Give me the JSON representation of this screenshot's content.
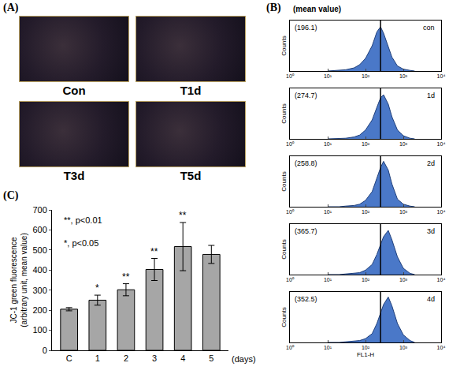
{
  "panels": {
    "A": {
      "label": "(A)",
      "images": [
        {
          "label": "Con"
        },
        {
          "label": "T1d"
        },
        {
          "label": "T3d"
        },
        {
          "label": "T5d"
        }
      ]
    },
    "B": {
      "label": "(B)",
      "header": "(mean value)"
    },
    "C": {
      "label": "(C)"
    }
  },
  "chart_data": [
    {
      "type": "area",
      "title": "con",
      "mean_label": "(196.1)",
      "x": [
        10,
        20,
        30,
        50,
        70,
        100,
        150,
        200,
        250,
        300,
        400,
        500,
        700,
        1000,
        1500,
        2000
      ],
      "values": [
        0,
        1,
        2,
        5,
        10,
        20,
        40,
        62,
        70,
        60,
        38,
        22,
        8,
        3,
        1,
        0
      ],
      "xlim": [
        1,
        10000
      ],
      "xticks": [
        {
          "value": 1,
          "label": "10⁰"
        },
        {
          "value": 10,
          "label": "10¹"
        },
        {
          "value": 100,
          "label": "10²"
        },
        {
          "value": 1000,
          "label": "10³"
        },
        {
          "value": 10000,
          "label": "10⁴"
        }
      ],
      "ylim": [
        0,
        80
      ],
      "log": "x",
      "tick_labels": "x",
      "y_label": "Counts",
      "reference_line": 250,
      "color": "#4a78c8"
    },
    {
      "type": "area",
      "title": "1d",
      "mean_label": "(274.7)",
      "x": [
        10,
        20,
        30,
        50,
        70,
        100,
        150,
        200,
        250,
        300,
        400,
        500,
        700,
        1000,
        1500,
        2000
      ],
      "values": [
        0,
        1,
        1,
        3,
        6,
        14,
        30,
        50,
        65,
        70,
        55,
        35,
        14,
        5,
        1,
        0
      ],
      "xlim": [
        1,
        10000
      ],
      "xticks": [
        {
          "value": 1,
          "label": "10⁰"
        },
        {
          "value": 10,
          "label": "10¹"
        },
        {
          "value": 100,
          "label": "10²"
        },
        {
          "value": 1000,
          "label": "10³"
        },
        {
          "value": 10000,
          "label": "10⁴"
        }
      ],
      "ylim": [
        0,
        80
      ],
      "log": "x",
      "tick_labels": "x",
      "y_label": "Counts",
      "reference_line": 250,
      "color": "#4a78c8"
    },
    {
      "type": "area",
      "title": "2d",
      "mean_label": "(258.8)",
      "x": [
        10,
        20,
        30,
        50,
        70,
        100,
        150,
        200,
        250,
        300,
        400,
        500,
        700,
        1000,
        1500,
        2000
      ],
      "values": [
        0,
        0,
        1,
        2,
        4,
        10,
        24,
        45,
        62,
        72,
        58,
        36,
        12,
        4,
        1,
        0
      ],
      "xlim": [
        1,
        10000
      ],
      "xticks": [
        {
          "value": 1,
          "label": "10⁰"
        },
        {
          "value": 10,
          "label": "10¹"
        },
        {
          "value": 100,
          "label": "10²"
        },
        {
          "value": 1000,
          "label": "10³"
        },
        {
          "value": 10000,
          "label": "10⁴"
        }
      ],
      "ylim": [
        0,
        80
      ],
      "log": "x",
      "tick_labels": "x",
      "y_label": "Counts",
      "reference_line": 250,
      "color": "#4a78c8"
    },
    {
      "type": "area",
      "title": "3d",
      "mean_label": "(365.7)",
      "x": [
        10,
        20,
        30,
        50,
        70,
        100,
        150,
        200,
        250,
        300,
        400,
        500,
        700,
        1000,
        1500,
        2000
      ],
      "values": [
        0,
        0,
        1,
        2,
        3,
        7,
        16,
        32,
        48,
        60,
        70,
        55,
        28,
        10,
        2,
        0
      ],
      "xlim": [
        1,
        10000
      ],
      "xticks": [
        {
          "value": 1,
          "label": "10⁰"
        },
        {
          "value": 10,
          "label": "10¹"
        },
        {
          "value": 100,
          "label": "10²"
        },
        {
          "value": 1000,
          "label": "10³"
        },
        {
          "value": 10000,
          "label": "10⁴"
        }
      ],
      "ylim": [
        0,
        80
      ],
      "log": "x",
      "tick_labels": "x",
      "y_label": "Counts",
      "reference_line": 250,
      "color": "#4a78c8"
    },
    {
      "type": "area",
      "title": "4d",
      "mean_label": "(352.5)",
      "x": [
        10,
        20,
        30,
        50,
        70,
        100,
        150,
        200,
        250,
        300,
        400,
        500,
        700,
        1000,
        1500,
        2000
      ],
      "values": [
        0,
        0,
        1,
        2,
        3,
        6,
        14,
        30,
        46,
        60,
        72,
        58,
        30,
        12,
        3,
        0
      ],
      "xlim": [
        1,
        10000
      ],
      "xticks": [
        {
          "value": 1,
          "label": "10⁰"
        },
        {
          "value": 10,
          "label": "10¹"
        },
        {
          "value": 100,
          "label": "10²"
        },
        {
          "value": 1000,
          "label": "10³"
        },
        {
          "value": 10000,
          "label": "10⁴"
        }
      ],
      "ylim": [
        0,
        80
      ],
      "log": "x",
      "tick_labels": "x",
      "y_label": "Counts",
      "x_label": "FL1-H",
      "reference_line": 250,
      "color": "#4a78c8"
    },
    {
      "type": "bar",
      "categories": [
        "C",
        "1",
        "2",
        "3",
        "4",
        "5"
      ],
      "values": [
        205,
        250,
        302,
        403,
        517,
        478
      ],
      "errors": [
        8,
        25,
        30,
        55,
        120,
        45
      ],
      "significance": [
        null,
        "*",
        "**",
        "**",
        "**",
        null
      ],
      "annotations": [
        "**, p<0.01",
        "*, p<0.05"
      ],
      "x_label": "(days)",
      "y_label": [
        "JC-1 green fluorescence",
        "(arbitrary unit, mean value)"
      ],
      "ylim": [
        0,
        700
      ],
      "yticks": [
        0,
        100,
        200,
        300,
        400,
        500,
        600,
        700
      ],
      "color": "#a6a6a6",
      "grid": false
    }
  ]
}
